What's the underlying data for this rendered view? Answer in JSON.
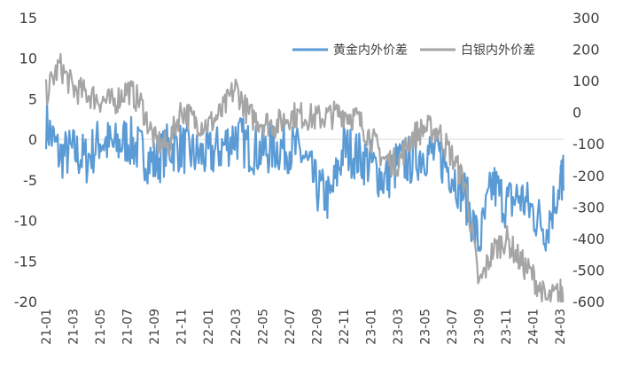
{
  "chart_data": {
    "type": "line",
    "legend": {
      "placement": "top-right"
    },
    "grid": false,
    "x_ticks": [
      "21-01",
      "21-03",
      "21-05",
      "21-07",
      "21-09",
      "21-11",
      "22-01",
      "22-03",
      "22-05",
      "22-07",
      "22-09",
      "22-11",
      "23-01",
      "23-03",
      "23-05",
      "23-07",
      "23-09",
      "23-11",
      "24-01",
      "24-03"
    ],
    "y_left": {
      "ylim": [
        -20,
        15
      ],
      "ticks": [
        15,
        10,
        5,
        0,
        -5,
        -10,
        -15,
        -20
      ]
    },
    "y_right": {
      "ylim": [
        -600,
        300
      ],
      "ticks": [
        300,
        200,
        100,
        0,
        -100,
        -200,
        -300,
        -400,
        -500,
        -600
      ]
    },
    "series": [
      {
        "name": "黄金内外价差",
        "axis": "left",
        "color": "#5b9bd5",
        "x": [
          "2021-01",
          "2021-02",
          "2021-03",
          "2021-04",
          "2021-05",
          "2021-06",
          "2021-07",
          "2021-08",
          "2021-09",
          "2021-10",
          "2021-11",
          "2021-12",
          "2022-01",
          "2022-02",
          "2022-03",
          "2022-04",
          "2022-05",
          "2022-06",
          "2022-07",
          "2022-08",
          "2022-09",
          "2022-10",
          "2022-11",
          "2022-12",
          "2023-01",
          "2023-02",
          "2023-03",
          "2023-04",
          "2023-05",
          "2023-06",
          "2023-07",
          "2023-08",
          "2023-09",
          "2023-10",
          "2023-11",
          "2023-12",
          "2024-01",
          "2024-02",
          "2024-03"
        ],
        "values": [
          2,
          -2,
          -1.5,
          -2.5,
          0,
          -1,
          0,
          -1.5,
          -3,
          -1,
          -1,
          -2,
          -2,
          -1,
          0.5,
          -1,
          -1.5,
          -1,
          -1,
          -2,
          -6,
          -7.5,
          -1,
          -2,
          -3,
          -5,
          -3,
          -2.5,
          -1.5,
          -2,
          -4,
          -7,
          -13,
          -5.5,
          -8,
          -7,
          -9,
          -11,
          -5
        ]
      },
      {
        "name": "白银内外价差",
        "axis": "right",
        "color": "#a5a5a5",
        "x": [
          "2021-01",
          "2021-02",
          "2021-03",
          "2021-04",
          "2021-05",
          "2021-06",
          "2021-07",
          "2021-08",
          "2021-09",
          "2021-10",
          "2021-11",
          "2021-12",
          "2022-01",
          "2022-02",
          "2022-03",
          "2022-04",
          "2022-05",
          "2022-06",
          "2022-07",
          "2022-08",
          "2022-09",
          "2022-10",
          "2022-11",
          "2022-12",
          "2023-01",
          "2023-02",
          "2023-03",
          "2023-04",
          "2023-05",
          "2023-06",
          "2023-07",
          "2023-08",
          "2023-09",
          "2023-10",
          "2023-11",
          "2023-12",
          "2024-01",
          "2024-02",
          "2024-03"
        ],
        "values": [
          60,
          150,
          75,
          60,
          40,
          30,
          75,
          30,
          -90,
          -110,
          10,
          -30,
          -40,
          0,
          80,
          -10,
          -30,
          -40,
          -10,
          -10,
          -20,
          -10,
          0,
          -20,
          -80,
          -150,
          -160,
          -80,
          -50,
          -60,
          -140,
          -230,
          -550,
          -440,
          -400,
          -470,
          -520,
          -600,
          -570
        ]
      }
    ]
  }
}
